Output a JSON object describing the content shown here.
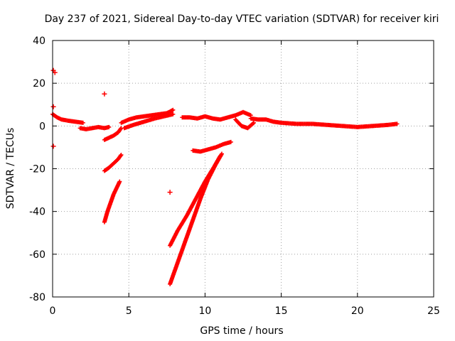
{
  "chart_data": {
    "type": "scatter",
    "title": "Day 237 of 2021, Sidereal Day-to-day VTEC variation (SDTVAR) for receiver kiri",
    "xlabel": "GPS time / hours",
    "ylabel": "SDTVAR / TECUs",
    "xlim": [
      0,
      25
    ],
    "ylim": [
      -80,
      40
    ],
    "x_ticks": [
      0,
      5,
      10,
      15,
      20,
      25
    ],
    "y_ticks": [
      -80,
      -60,
      -40,
      -20,
      0,
      20,
      40
    ],
    "x_tick_labels": [
      "0",
      "5",
      "10",
      "15",
      "20",
      "25"
    ],
    "y_tick_labels": [
      "-80",
      "-60",
      "-40",
      "-20",
      "0",
      "20",
      "40"
    ],
    "grid": true,
    "legend": "none",
    "marker": "+",
    "color": "#ff0000",
    "segments": [
      {
        "x": [
          0.0,
          0.3,
          0.6,
          1.0,
          1.5,
          2.0
        ],
        "y": [
          5.5,
          4.0,
          3.0,
          2.5,
          2.0,
          1.5
        ]
      },
      {
        "x": [
          1.8,
          2.2,
          2.6,
          3.0,
          3.4,
          3.7
        ],
        "y": [
          -1.0,
          -1.5,
          -1.0,
          -0.5,
          -1.0,
          -0.5
        ]
      },
      {
        "x": [
          3.4,
          3.7,
          4.0,
          4.3,
          4.5
        ],
        "y": [
          -6.5,
          -5.5,
          -4.5,
          -3.0,
          -1.0
        ]
      },
      {
        "x": [
          3.4,
          3.7,
          4.0,
          4.3,
          4.5
        ],
        "y": [
          -21.0,
          -19.5,
          -17.5,
          -15.5,
          -13.5
        ]
      },
      {
        "x": [
          3.4,
          3.6,
          3.8,
          4.0,
          4.2,
          4.4
        ],
        "y": [
          -45.0,
          -40.0,
          -36.0,
          -32.0,
          -29.0,
          -26.0
        ]
      },
      {
        "x": [
          4.5,
          5.0,
          5.5,
          6.0,
          6.5,
          7.0,
          7.5,
          7.9
        ],
        "y": [
          1.5,
          3.0,
          4.0,
          4.5,
          5.0,
          5.5,
          6.0,
          7.5
        ]
      },
      {
        "x": [
          4.7,
          5.3,
          6.0,
          6.7,
          7.3,
          7.9
        ],
        "y": [
          -1.0,
          0.5,
          2.0,
          3.5,
          4.5,
          5.5
        ]
      },
      {
        "x": [
          7.7,
          8.2,
          8.8,
          9.4,
          10.0,
          10.6,
          11.0
        ],
        "y": [
          -56.0,
          -49.0,
          -42.0,
          -34.0,
          -26.0,
          -19.0,
          -14.0
        ]
      },
      {
        "x": [
          7.7,
          8.2,
          8.7,
          9.2,
          9.7,
          10.2,
          10.7,
          11.1
        ],
        "y": [
          -74.0,
          -64.0,
          -54.0,
          -44.0,
          -34.0,
          -25.0,
          -18.0,
          -13.0
        ]
      },
      {
        "x": [
          9.2,
          9.7,
          10.2,
          10.7,
          11.2,
          11.7
        ],
        "y": [
          -11.5,
          -12.0,
          -11.0,
          -10.0,
          -8.5,
          -7.5
        ]
      },
      {
        "x": [
          8.5,
          9.0,
          9.5,
          10.0,
          10.5,
          11.0,
          11.5,
          12.0,
          12.5,
          13.0
        ],
        "y": [
          4.0,
          4.0,
          3.5,
          4.5,
          3.5,
          3.0,
          4.0,
          5.0,
          6.5,
          5.0
        ]
      },
      {
        "x": [
          12.0,
          12.4,
          12.8,
          13.2
        ],
        "y": [
          3.0,
          0.0,
          -1.0,
          1.5
        ]
      },
      {
        "x": [
          13.0,
          13.5,
          14.0,
          14.5,
          15.0,
          16.0,
          17.0,
          18.0,
          19.0,
          20.0,
          21.0,
          22.0,
          22.6
        ],
        "y": [
          3.5,
          3.0,
          3.0,
          2.0,
          1.5,
          1.0,
          1.0,
          0.5,
          0.0,
          -0.5,
          0.0,
          0.5,
          1.0
        ]
      }
    ],
    "isolated_points": [
      {
        "x": 0.05,
        "y": 26.0
      },
      {
        "x": 0.15,
        "y": 25.0
      },
      {
        "x": 0.05,
        "y": 9.0
      },
      {
        "x": 0.05,
        "y": -9.5
      },
      {
        "x": 3.4,
        "y": 15.0
      },
      {
        "x": 7.7,
        "y": -31.0
      }
    ]
  }
}
